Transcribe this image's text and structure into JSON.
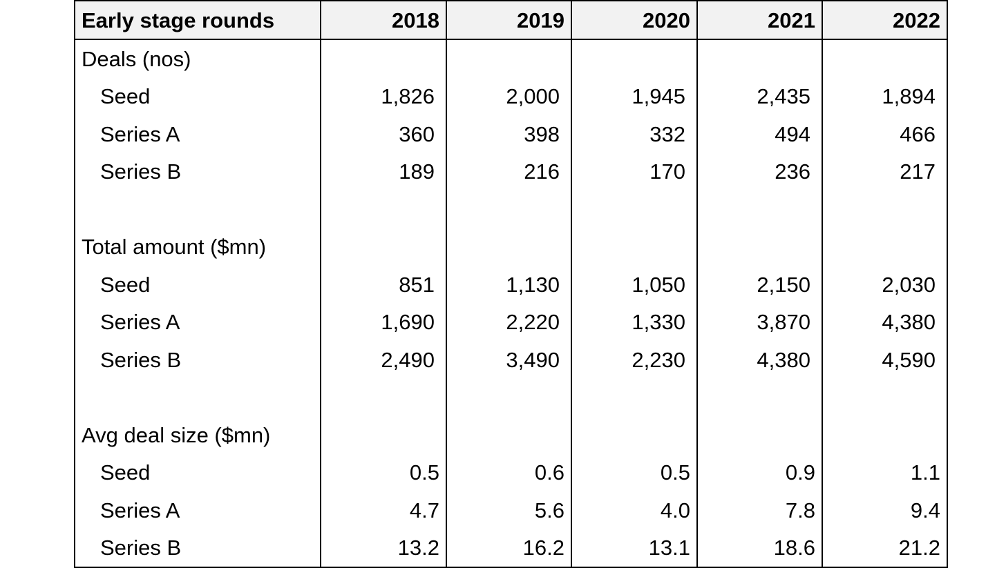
{
  "table": {
    "header": {
      "title": "Early stage rounds",
      "years": [
        "2018",
        "2019",
        "2020",
        "2021",
        "2022"
      ]
    },
    "sections": [
      {
        "title": "Deals (nos)",
        "rows": [
          {
            "label": "Seed",
            "values": [
              "1,826",
              "2,000",
              "1,945",
              "2,435",
              "1,894"
            ]
          },
          {
            "label": "Series A",
            "values": [
              "360",
              "398",
              "332",
              "494",
              "466"
            ]
          },
          {
            "label": "Series B",
            "values": [
              "189",
              "216",
              "170",
              "236",
              "217"
            ]
          }
        ]
      },
      {
        "title": "Total amount ($mn)",
        "rows": [
          {
            "label": "Seed",
            "values": [
              "851",
              "1,130",
              "1,050",
              "2,150",
              "2,030"
            ]
          },
          {
            "label": "Series A",
            "values": [
              "1,690",
              "2,220",
              "1,330",
              "3,870",
              "4,380"
            ]
          },
          {
            "label": "Series B",
            "values": [
              "2,490",
              "3,490",
              "2,230",
              "4,380",
              "4,590"
            ]
          }
        ]
      },
      {
        "title": "Avg deal size ($mn)",
        "rows": [
          {
            "label": "Seed",
            "values": [
              "0.5",
              "0.6",
              "0.5",
              "0.9",
              "1.1"
            ]
          },
          {
            "label": "Series A",
            "values": [
              "4.7",
              "5.6",
              "4.0",
              "7.8",
              "9.4"
            ]
          },
          {
            "label": "Series B",
            "values": [
              "13.2",
              "16.2",
              "13.1",
              "18.6",
              "21.2"
            ]
          }
        ]
      }
    ]
  }
}
